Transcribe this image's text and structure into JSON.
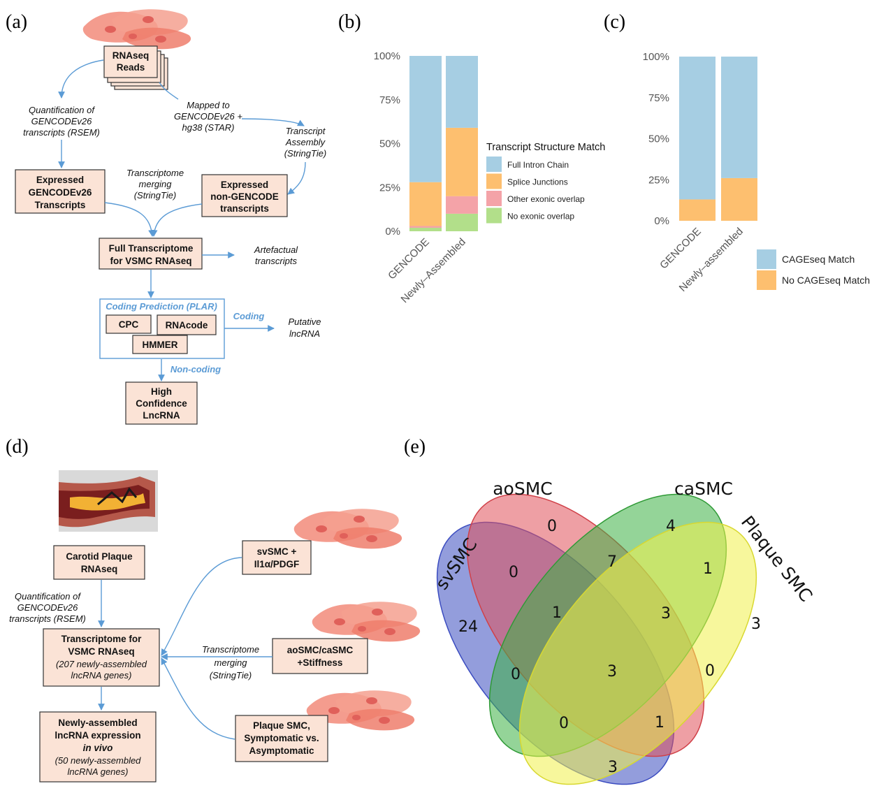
{
  "panels": {
    "a": "(a)",
    "b": "(b)",
    "c": "(c)",
    "d": "(d)",
    "e": "(e)"
  },
  "panel_a": {
    "rnaseq": [
      "RNAseq",
      "Reads"
    ],
    "quant": [
      "Quantification of",
      "GENCODEv26",
      "transcripts (RSEM)"
    ],
    "mapped": [
      "Mapped to",
      "GENCODEv26 +",
      "hg38 (STAR)"
    ],
    "assembly": [
      "Transcript",
      "Assembly",
      "(StringTie)"
    ],
    "expressed_gencode": [
      "Expressed",
      "GENCODEv26",
      "Transcripts"
    ],
    "merging": [
      "Transcriptome",
      "merging",
      "(StringTie)"
    ],
    "expressed_non": [
      "Expressed",
      "non-GENCODE",
      "transcripts"
    ],
    "full_transcriptome": [
      "Full Transcriptome",
      "for VSMC RNAseq"
    ],
    "artefactual": [
      "Artefactual",
      "transcripts"
    ],
    "coding_prediction": "Coding Prediction (PLAR)",
    "cpc": "CPC",
    "rnacode": "RNAcode",
    "hmmer": "HMMER",
    "coding": "Coding",
    "putative": [
      "Putative",
      "lncRNA"
    ],
    "non_coding": "Non-coding",
    "high_conf": [
      "High",
      "Confidence",
      "LncRNA"
    ]
  },
  "panel_d": {
    "carotid": [
      "Carotid Plaque",
      "RNAseq"
    ],
    "quant": [
      "Quantification of",
      "GENCODEv26",
      "transcripts (RSEM)"
    ],
    "transcriptome_title": [
      "Transcriptome for",
      "VSMC RNAseq"
    ],
    "transcriptome_sub": [
      "(207 newly-assembled",
      "lncRNA genes)"
    ],
    "newly_title": [
      "Newly-assembled",
      "lncRNA expression",
      "in vivo"
    ],
    "newly_sub": [
      "(50 newly-assembled",
      "lncRNA genes)"
    ],
    "svsmc": [
      "svSMC +",
      "Il1α/PDGF"
    ],
    "merging": [
      "Transcriptome",
      "merging",
      "(StringTie)"
    ],
    "aocasmc": [
      "aoSMC/caSMC",
      "+Stiffness"
    ],
    "plaque": [
      "Plaque SMC,",
      "Symptomatic vs.",
      "Asymptomatic"
    ]
  },
  "colors": {
    "full_intron": "#a6cee3",
    "splice": "#fdbf6f",
    "other_exonic": "#f4a3a8",
    "no_exonic": "#b2df8a",
    "cage_match": "#a6cee3",
    "no_cage_match": "#fdbf6f",
    "box_fill": "#fbe3d6",
    "arrow": "#5b9bd5"
  },
  "chart_data": [
    {
      "panel": "b",
      "type": "bar",
      "stacked": true,
      "categories": [
        "GENCODE",
        "Newly–Assembled"
      ],
      "yticks": [
        "0%",
        "25%",
        "50%",
        "75%",
        "100%"
      ],
      "ylim": [
        0,
        100
      ],
      "legend_title": "Transcript Structure Match",
      "legend_position": "right",
      "series": [
        {
          "name": "No exonic overlap",
          "values": [
            2,
            10
          ],
          "color": "#b2df8a"
        },
        {
          "name": "Other exonic overlap",
          "values": [
            1,
            10
          ],
          "color": "#f4a3a8"
        },
        {
          "name": "Splice Junctions",
          "values": [
            25,
            39
          ],
          "color": "#fdbf6f"
        },
        {
          "name": "Full Intron Chain",
          "values": [
            72,
            41
          ],
          "color": "#a6cee3"
        }
      ],
      "legend_order": [
        "Full Intron Chain",
        "Splice Junctions",
        "Other exonic overlap",
        "No exonic overlap"
      ]
    },
    {
      "panel": "c",
      "type": "bar",
      "stacked": true,
      "categories": [
        "GENCODE",
        "Newly–assembled"
      ],
      "yticks": [
        "0%",
        "25%",
        "50%",
        "75%",
        "100%"
      ],
      "ylim": [
        0,
        100
      ],
      "legend_position": "bottom-right",
      "series": [
        {
          "name": "No CAGEseq Match",
          "values": [
            13,
            26
          ],
          "color": "#fdbf6f"
        },
        {
          "name": "CAGEseq Match",
          "values": [
            87,
            74
          ],
          "color": "#a6cee3"
        }
      ],
      "legend_order": [
        "CAGEseq Match",
        "No CAGEseq Match"
      ]
    }
  ],
  "venn": {
    "sets": [
      {
        "name": "svSMC",
        "color": "#3b4cc0"
      },
      {
        "name": "aoSMC",
        "color": "#e0515a"
      },
      {
        "name": "caSMC",
        "color": "#3cb043"
      },
      {
        "name": "Plaque SMC",
        "color": "#f0f04a"
      }
    ],
    "regions": [
      {
        "sets": [
          "aoSMC"
        ],
        "count": "0"
      },
      {
        "sets": [
          "caSMC"
        ],
        "count": "4"
      },
      {
        "sets": [
          "svSMC"
        ],
        "count": "24"
      },
      {
        "sets": [
          "Plaque SMC"
        ],
        "count": "3"
      },
      {
        "sets": [
          "svSMC",
          "aoSMC"
        ],
        "count": "0"
      },
      {
        "sets": [
          "aoSMC",
          "caSMC"
        ],
        "count": "7"
      },
      {
        "sets": [
          "caSMC",
          "Plaque SMC"
        ],
        "count": "1"
      },
      {
        "sets": [
          "svSMC",
          "aoSMC",
          "caSMC"
        ],
        "count": "1"
      },
      {
        "sets": [
          "aoSMC",
          "caSMC",
          "Plaque SMC"
        ],
        "count": "3"
      },
      {
        "sets": [
          "svSMC",
          "caSMC"
        ],
        "count": "0"
      },
      {
        "sets": [
          "svSMC",
          "aoSMC",
          "caSMC",
          "Plaque SMC"
        ],
        "count": "3"
      },
      {
        "sets": [
          "aoSMC",
          "Plaque SMC"
        ],
        "count": "0"
      },
      {
        "sets": [
          "svSMC",
          "caSMC",
          "Plaque SMC"
        ],
        "count": "0"
      },
      {
        "sets": [
          "svSMC",
          "aoSMC",
          "Plaque SMC"
        ],
        "count": "1"
      },
      {
        "sets": [
          "svSMC",
          "Plaque SMC"
        ],
        "count": "3"
      }
    ]
  }
}
